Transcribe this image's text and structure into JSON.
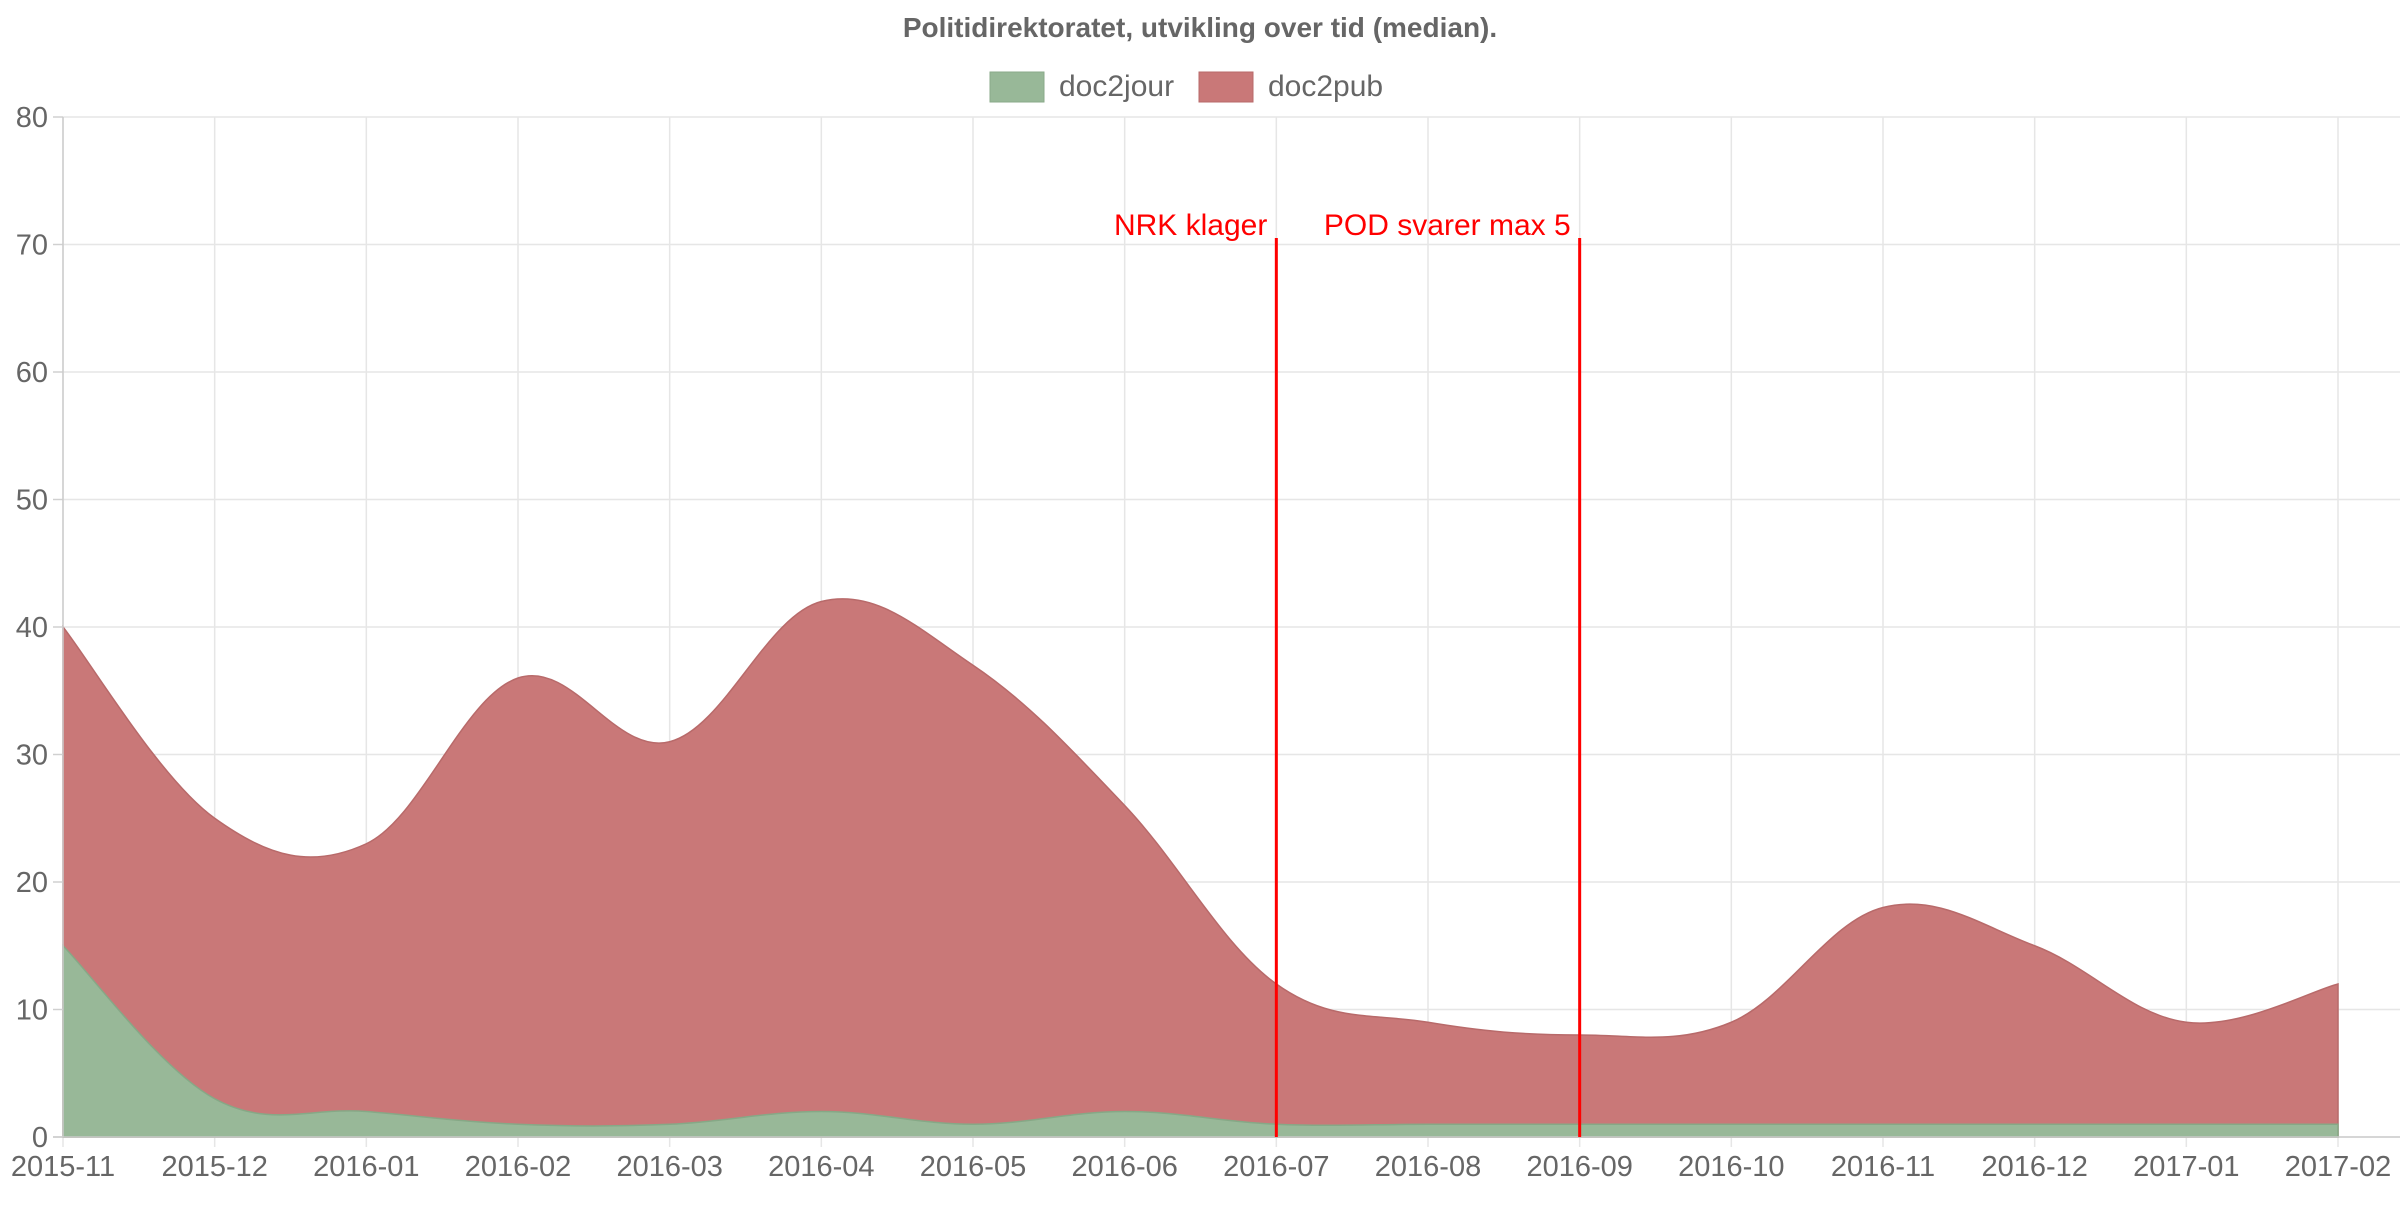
{
  "chart_data": {
    "type": "area",
    "stacked": true,
    "title": "Politidirektoratet, utvikling over tid (median).",
    "xlabel": "",
    "ylabel": "",
    "x": [
      "2015-11",
      "2015-12",
      "2016-01",
      "2016-02",
      "2016-03",
      "2016-04",
      "2016-05",
      "2016-06",
      "2016-07",
      "2016-08",
      "2016-09",
      "2016-10",
      "2016-11",
      "2016-12",
      "2017-01",
      "2017-02"
    ],
    "ylim": [
      0,
      80
    ],
    "yticks": [
      0,
      10,
      20,
      30,
      40,
      50,
      60,
      70,
      80
    ],
    "grid": true,
    "legend_position": "top-center",
    "series": [
      {
        "name": "doc2jour",
        "color": "#98b898",
        "values": [
          15,
          3,
          2,
          1,
          1,
          2,
          1,
          2,
          1,
          1,
          1,
          1,
          1,
          1,
          1,
          1
        ]
      },
      {
        "name": "doc2pub",
        "color": "#c97878",
        "values": [
          25,
          22,
          21,
          35,
          30,
          40,
          36,
          24,
          11,
          8,
          7,
          8,
          17,
          14,
          8,
          11
        ]
      }
    ],
    "annotations": [
      {
        "x": "2016-07",
        "label": "NRK klager",
        "color": "#ff0000"
      },
      {
        "x": "2016-09",
        "label": "POD svarer max 5",
        "color": "#ff0000"
      }
    ]
  }
}
